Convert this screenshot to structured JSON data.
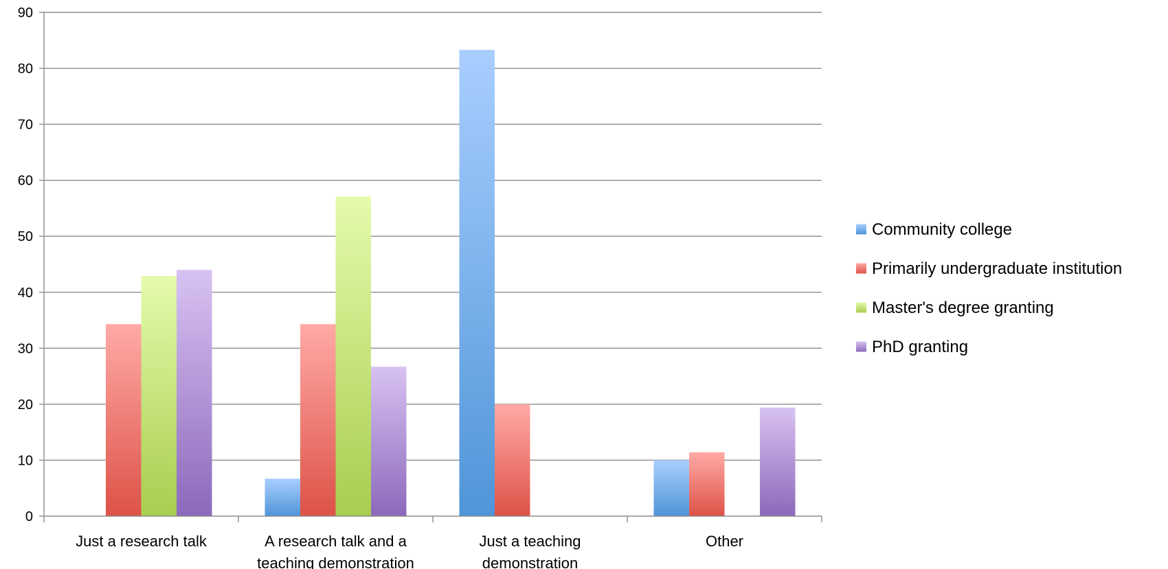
{
  "chart_data": {
    "type": "bar",
    "categories": [
      [
        "Just a research talk"
      ],
      [
        "A research talk and a",
        "teaching demonstration"
      ],
      [
        "Just a teaching",
        "demonstration"
      ],
      [
        "Other"
      ]
    ],
    "series": [
      {
        "name": "Community college",
        "color": "#5b9bd5",
        "values": [
          0,
          6.7,
          83.3,
          10
        ]
      },
      {
        "name": "Primarily undergraduate institution",
        "color": "#e0574f",
        "values": [
          34.3,
          34.3,
          20,
          11.4
        ]
      },
      {
        "name": "Master's degree granting",
        "color": "#a9cf54",
        "values": [
          42.9,
          57.1,
          0,
          0
        ]
      },
      {
        "name": "PhD granting",
        "color": "#8b6bbd",
        "values": [
          44,
          26.7,
          0,
          19.4
        ]
      }
    ],
    "ylim": [
      0,
      90
    ],
    "yticks": [
      0,
      10,
      20,
      30,
      40,
      50,
      60,
      70,
      80,
      90
    ],
    "grid": true,
    "legend": "right",
    "title": "",
    "xlabel": "",
    "ylabel": ""
  }
}
